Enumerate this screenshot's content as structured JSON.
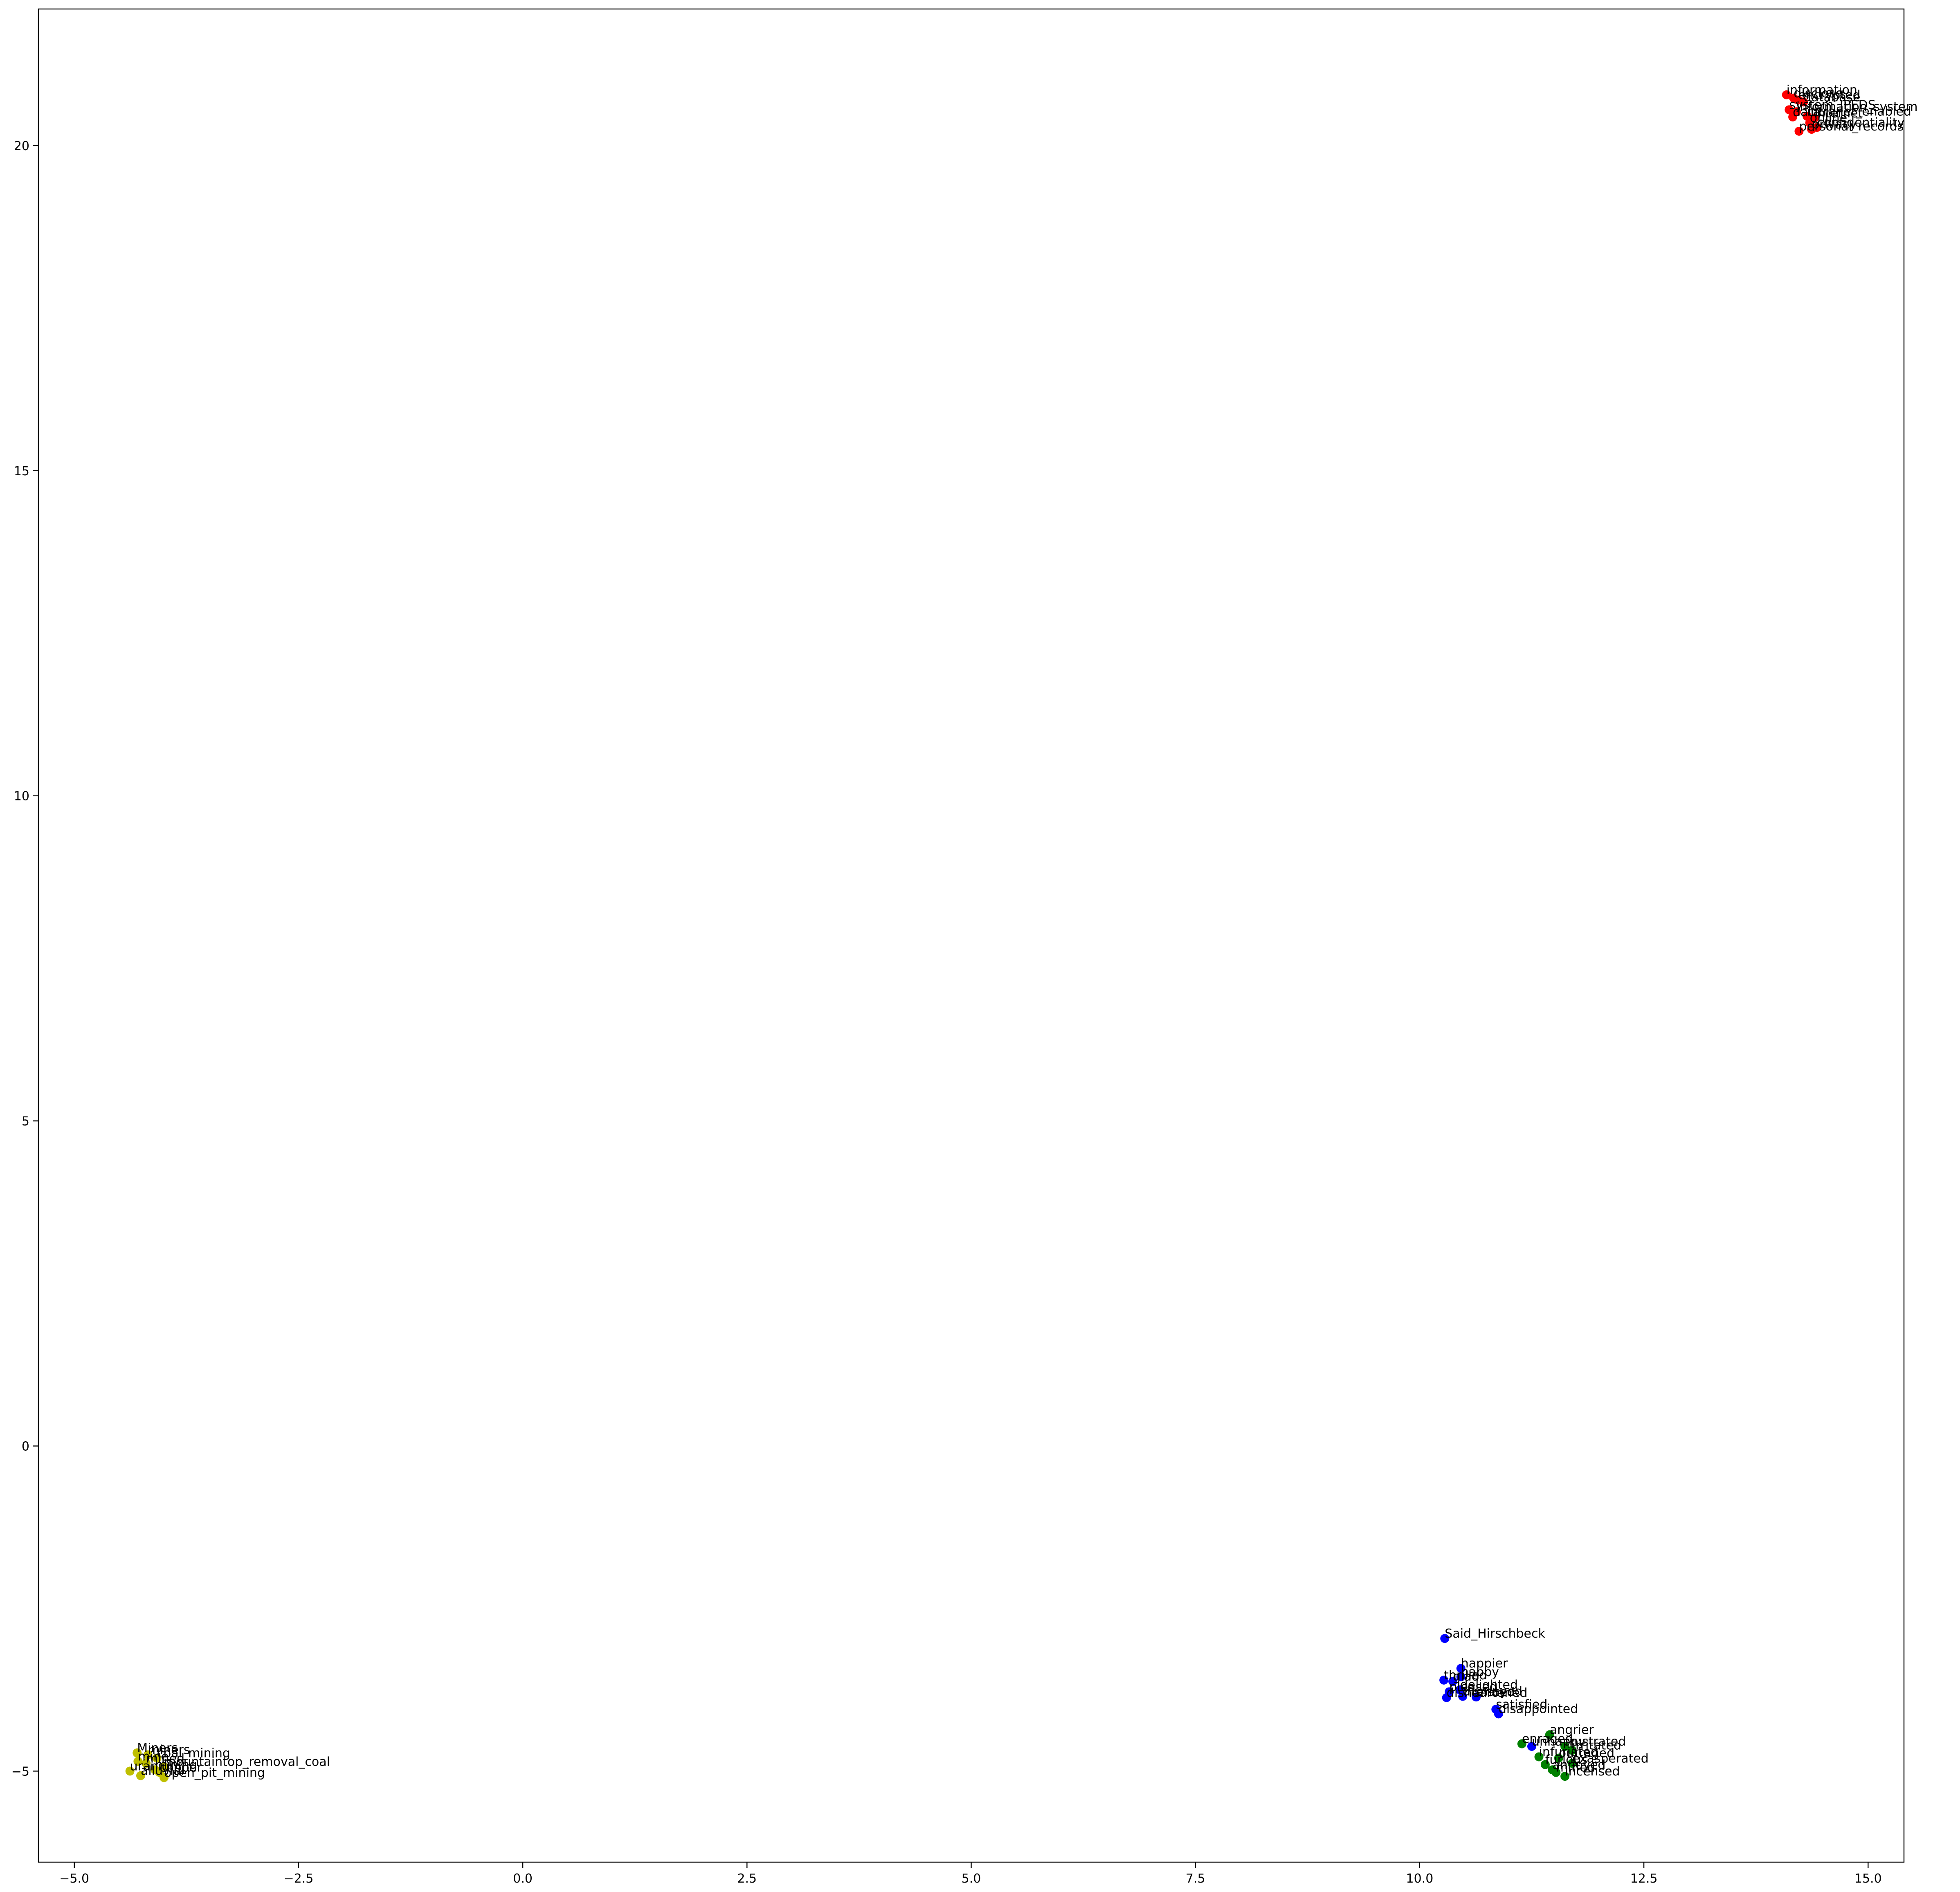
{
  "chart_data": {
    "type": "scatter",
    "title": "",
    "xlabel": "",
    "ylabel": "",
    "xlim": [
      -5.4,
      15.4
    ],
    "ylim": [
      -6.4,
      22.1
    ],
    "xticks": [
      -5.0,
      -2.5,
      0.0,
      2.5,
      5.0,
      7.5,
      10.0,
      12.5,
      15.0
    ],
    "xtick_labels": [
      "−5.0",
      "−2.5",
      "0.0",
      "2.5",
      "5.0",
      "7.5",
      "10.0",
      "12.5",
      "15.0"
    ],
    "yticks": [
      -5,
      0,
      5,
      10,
      15,
      20
    ],
    "ytick_labels": [
      "−5",
      "0",
      "5",
      "10",
      "15",
      "20"
    ],
    "grid": false,
    "legend": "none",
    "colors": {
      "red": "#ff0000",
      "blue": "#0000ff",
      "green": "#008000",
      "yellow": "#bfbf00"
    },
    "series": [
      {
        "color": "red",
        "points": [
          {
            "x": 14.09,
            "y": 20.78,
            "label": "information"
          },
          {
            "x": 14.17,
            "y": 20.73,
            "label": "disclose"
          },
          {
            "x": 14.22,
            "y": 20.7,
            "label": "encrypted"
          },
          {
            "x": 14.28,
            "y": 20.67,
            "label": "database"
          },
          {
            "x": 14.12,
            "y": 20.55,
            "label": "system_IPEDS"
          },
          {
            "x": 14.2,
            "y": 20.52,
            "label": "information_system"
          },
          {
            "x": 14.16,
            "y": 20.44,
            "label": "data"
          },
          {
            "x": 14.32,
            "y": 20.45,
            "label": "intranet_enabled"
          },
          {
            "x": 14.4,
            "y": 20.42,
            "label": "internet"
          },
          {
            "x": 14.35,
            "y": 20.35,
            "label": "online"
          },
          {
            "x": 14.43,
            "y": 20.28,
            "label": "confidentiality"
          },
          {
            "x": 14.23,
            "y": 20.22,
            "label": "personal_records"
          },
          {
            "x": 14.37,
            "y": 20.25,
            "label": "privacy"
          }
        ]
      },
      {
        "color": "blue",
        "points": [
          {
            "x": 10.28,
            "y": -2.96,
            "label": "Said_Hirschbeck"
          },
          {
            "x": 10.46,
            "y": -3.42,
            "label": "happier"
          },
          {
            "x": 10.27,
            "y": -3.6,
            "label": "thrilled"
          },
          {
            "x": 10.37,
            "y": -3.62,
            "label": "glad"
          },
          {
            "x": 10.46,
            "y": -3.55,
            "label": "happy"
          },
          {
            "x": 10.33,
            "y": -3.78,
            "label": "pleased"
          },
          {
            "x": 10.45,
            "y": -3.75,
            "label": "delighted"
          },
          {
            "x": 10.3,
            "y": -3.87,
            "label": "disheartened"
          },
          {
            "x": 10.48,
            "y": -3.85,
            "label": "dismayed"
          },
          {
            "x": 10.63,
            "y": -3.86,
            "label": "elated"
          },
          {
            "x": 10.85,
            "y": -4.05,
            "label": "satisfied"
          },
          {
            "x": 10.88,
            "y": -4.12,
            "label": "disappointed"
          },
          {
            "x": 11.25,
            "y": -4.62,
            "label": "unhappy"
          }
        ]
      },
      {
        "color": "green",
        "points": [
          {
            "x": 11.45,
            "y": -4.44,
            "label": "angrier"
          },
          {
            "x": 11.14,
            "y": -4.58,
            "label": "enraged"
          },
          {
            "x": 11.62,
            "y": -4.62,
            "label": "frustrated"
          },
          {
            "x": 11.7,
            "y": -4.68,
            "label": "irritated"
          },
          {
            "x": 11.33,
            "y": -4.78,
            "label": "infuriated"
          },
          {
            "x": 11.55,
            "y": -4.8,
            "label": "outraged"
          },
          {
            "x": 11.4,
            "y": -4.9,
            "label": "furious"
          },
          {
            "x": 11.7,
            "y": -4.88,
            "label": "exasperated"
          },
          {
            "x": 11.48,
            "y": -4.98,
            "label": "annoyed"
          },
          {
            "x": 11.52,
            "y": -5.02,
            "label": "miffed"
          },
          {
            "x": 11.62,
            "y": -5.08,
            "label": "incensed"
          }
        ]
      },
      {
        "color": "yellow",
        "points": [
          {
            "x": -4.3,
            "y": -4.72,
            "label": "Miners"
          },
          {
            "x": -4.18,
            "y": -4.75,
            "label": "miners"
          },
          {
            "x": -4.08,
            "y": -4.8,
            "label": "coal_mining"
          },
          {
            "x": -4.29,
            "y": -4.85,
            "label": "mine"
          },
          {
            "x": -4.2,
            "y": -4.88,
            "label": "mined"
          },
          {
            "x": -4.0,
            "y": -4.93,
            "label": "mountaintop_removal_coal"
          },
          {
            "x": -4.1,
            "y": -4.98,
            "label": "mining"
          },
          {
            "x": -4.05,
            "y": -5.02,
            "label": "copper"
          },
          {
            "x": -4.38,
            "y": -5.0,
            "label": "uranium"
          },
          {
            "x": -4.26,
            "y": -5.07,
            "label": "alluvial"
          },
          {
            "x": -4.0,
            "y": -5.1,
            "label": "open_pit_mining"
          }
        ]
      }
    ]
  }
}
